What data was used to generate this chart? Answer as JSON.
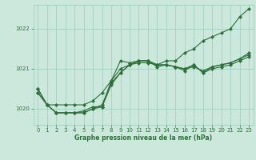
{
  "title": "Graphe pression niveau de la mer (hPa)",
  "background_color": "#cce8dd",
  "grid_color": "#99ccbb",
  "line_color": "#2d6e3a",
  "marker_color": "#2d6e3a",
  "xlim": [
    -0.5,
    23.5
  ],
  "ylim": [
    1019.6,
    1022.6
  ],
  "yticks": [
    1020,
    1021,
    1022
  ],
  "xticks": [
    0,
    1,
    2,
    3,
    4,
    5,
    6,
    7,
    8,
    9,
    10,
    11,
    12,
    13,
    14,
    15,
    16,
    17,
    18,
    19,
    20,
    21,
    22,
    23
  ],
  "series": [
    {
      "x": [
        0,
        1,
        2,
        3,
        4,
        5,
        6,
        7,
        8,
        9,
        10,
        11,
        12,
        13,
        14,
        15,
        16,
        17,
        18,
        19,
        20,
        21,
        22,
        23
      ],
      "y": [
        1020.5,
        1020.1,
        1020.1,
        1020.1,
        1020.1,
        1020.1,
        1020.2,
        1020.4,
        1020.7,
        1021.0,
        1021.1,
        1021.2,
        1021.2,
        1021.1,
        1021.2,
        1021.2,
        1021.4,
        1021.5,
        1021.7,
        1021.8,
        1021.9,
        1022.0,
        1022.3,
        1022.5
      ]
    },
    {
      "x": [
        0,
        1,
        2,
        3,
        4,
        5,
        6,
        7,
        8,
        9,
        10,
        11,
        12,
        13,
        14,
        15,
        16,
        17,
        18,
        19,
        20,
        21,
        22,
        23
      ],
      "y": [
        1020.4,
        1020.1,
        1019.9,
        1019.9,
        1019.9,
        1019.9,
        1020.0,
        1020.05,
        1020.6,
        1020.9,
        1021.1,
        1021.15,
        1021.15,
        1021.1,
        1021.1,
        1021.05,
        1021.0,
        1021.1,
        1020.9,
        1021.0,
        1021.05,
        1021.1,
        1021.2,
        1021.3
      ]
    },
    {
      "x": [
        0,
        1,
        2,
        3,
        4,
        5,
        6,
        7,
        8,
        9,
        10,
        11,
        12,
        13,
        14,
        15,
        16,
        17,
        18,
        19,
        20,
        21,
        22,
        23
      ],
      "y": [
        1020.4,
        1020.1,
        1019.9,
        1019.9,
        1019.9,
        1019.9,
        1020.0,
        1020.1,
        1020.65,
        1020.9,
        1021.1,
        1021.2,
        1021.2,
        1021.1,
        1021.1,
        1021.05,
        1021.0,
        1021.05,
        1020.95,
        1021.05,
        1021.1,
        1021.15,
        1021.25,
        1021.35
      ]
    },
    {
      "x": [
        0,
        1,
        2,
        3,
        4,
        5,
        6,
        7,
        8,
        9,
        10,
        11,
        12,
        13,
        14,
        15,
        16,
        17,
        18,
        19,
        20,
        21,
        22,
        23
      ],
      "y": [
        1020.5,
        1020.1,
        1019.9,
        1019.9,
        1019.9,
        1019.95,
        1020.05,
        1020.05,
        1020.7,
        1021.2,
        1021.15,
        1021.2,
        1021.2,
        1021.05,
        1021.1,
        1021.05,
        1020.95,
        1021.1,
        1020.9,
        1021.05,
        1021.1,
        1021.15,
        1021.25,
        1021.4
      ]
    }
  ]
}
